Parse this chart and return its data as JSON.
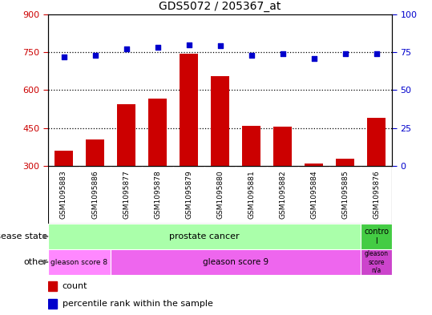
{
  "title": "GDS5072 / 205367_at",
  "samples": [
    "GSM1095883",
    "GSM1095886",
    "GSM1095877",
    "GSM1095878",
    "GSM1095879",
    "GSM1095880",
    "GSM1095881",
    "GSM1095882",
    "GSM1095884",
    "GSM1095885",
    "GSM1095876"
  ],
  "counts": [
    360,
    405,
    545,
    565,
    745,
    655,
    460,
    455,
    310,
    330,
    490
  ],
  "percentiles": [
    72,
    73,
    77,
    78,
    80,
    79,
    73,
    74,
    71,
    74,
    74
  ],
  "ylim_left": [
    300,
    900
  ],
  "ylim_right": [
    0,
    100
  ],
  "yticks_left": [
    300,
    450,
    600,
    750,
    900
  ],
  "yticks_right": [
    0,
    25,
    50,
    75,
    100
  ],
  "bar_color": "#cc0000",
  "dot_color": "#0000cc",
  "dotted_line_ticks": [
    450,
    600,
    750
  ],
  "disease_state_n_prostate": 10,
  "other_n_gs8": 2,
  "other_n_gs9": 8,
  "disease_state_color_prostate": "#aaffaa",
  "disease_state_color_control": "#44cc44",
  "other_color_gs8": "#ff88ff",
  "other_color_gs9": "#ee66ee",
  "other_color_gsna": "#cc44cc",
  "legend_count_label": "count",
  "legend_percentile_label": "percentile rank within the sample",
  "tick_label_color_left": "#cc0000",
  "tick_label_color_right": "#0000cc",
  "tick_area_color": "#cccccc",
  "cell_divider_color": "#ffffff",
  "fig_bg_color": "#ffffff"
}
